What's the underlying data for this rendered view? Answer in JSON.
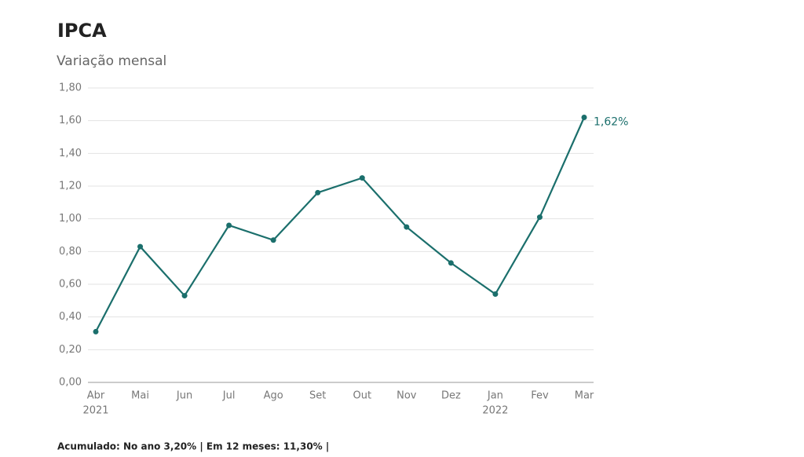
{
  "chart_data": {
    "type": "line",
    "title": "IPCA",
    "subtitle": "Variação mensal",
    "categories": [
      "Abr",
      "Mai",
      "Jun",
      "Jul",
      "Ago",
      "Set",
      "Out",
      "Nov",
      "Dez",
      "Jan",
      "Fev",
      "Mar"
    ],
    "year_labels": [
      "2021",
      null,
      null,
      null,
      null,
      null,
      null,
      null,
      null,
      "2022",
      null,
      null
    ],
    "values": [
      0.31,
      0.83,
      0.53,
      0.96,
      0.87,
      1.16,
      1.25,
      0.95,
      0.73,
      0.54,
      1.01,
      1.62
    ],
    "value_labels": [
      null,
      null,
      null,
      null,
      null,
      null,
      null,
      null,
      null,
      null,
      null,
      "1,62%"
    ],
    "color": "#1b6f6c",
    "ylim": [
      0,
      1.8
    ],
    "yticks": [
      {
        "value": 0,
        "label": "0,00"
      },
      {
        "value": 0.2,
        "label": "0,20"
      },
      {
        "value": 0.4,
        "label": "0,40"
      },
      {
        "value": 0.6,
        "label": "0,60"
      },
      {
        "value": 0.8,
        "label": "0,80"
      },
      {
        "value": 1.0,
        "label": "1,00"
      },
      {
        "value": 1.2,
        "label": "1,20"
      },
      {
        "value": 1.4,
        "label": "1,40"
      },
      {
        "value": 1.6,
        "label": "1,60"
      },
      {
        "value": 1.8,
        "label": "1,80"
      }
    ],
    "grid": true,
    "footnote": "Acumulado: No ano 3,20% | Em 12 meses: 11,30% |"
  }
}
